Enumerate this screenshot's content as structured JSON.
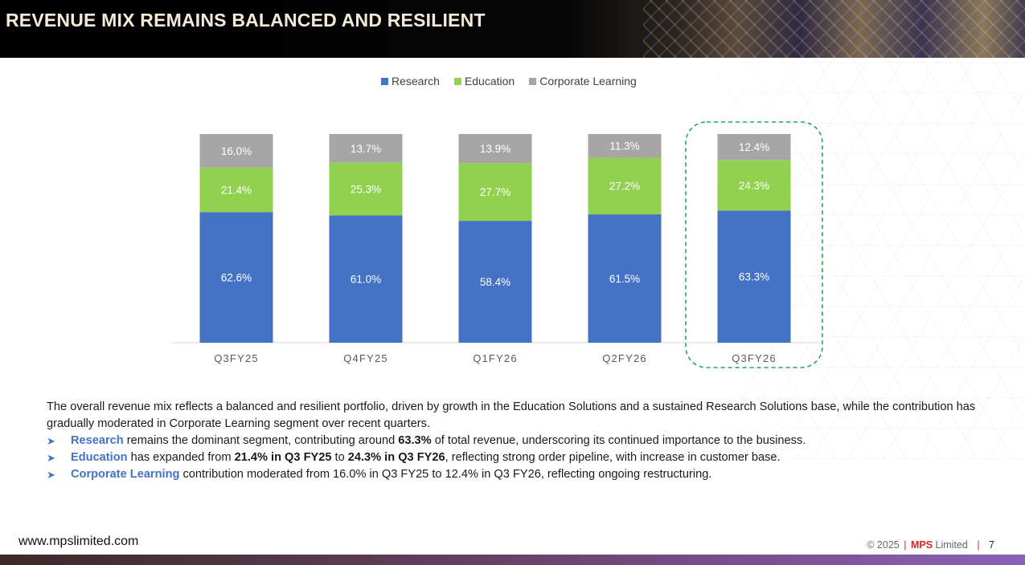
{
  "header": {
    "title": "REVENUE MIX REMAINS BALANCED AND RESILIENT"
  },
  "colors": {
    "research": "#4472c4",
    "education": "#92d050",
    "corporate": "#a6a6a6",
    "highlight": "#22aa55",
    "accent_red": "#d8241f"
  },
  "chart_data": {
    "type": "bar",
    "stacked": true,
    "categories": [
      "Q3FY25",
      "Q4FY25",
      "Q1FY26",
      "Q2FY26",
      "Q3FY26"
    ],
    "series": [
      {
        "name": "Research",
        "values": [
          62.6,
          61.0,
          58.4,
          61.5,
          63.3
        ],
        "labels": [
          "62.6%",
          "61.0%",
          "58.4%",
          "61.5%",
          "63.3%"
        ]
      },
      {
        "name": "Education",
        "values": [
          21.4,
          25.3,
          27.7,
          27.2,
          24.3
        ],
        "labels": [
          "21.4%",
          "25.3%",
          "27.7%",
          "27.2%",
          "24.3%"
        ]
      },
      {
        "name": "Corporate Learning",
        "values": [
          16.0,
          13.7,
          13.9,
          11.3,
          12.4
        ],
        "labels": [
          "16.0%",
          "13.7%",
          "13.9%",
          "11.3%",
          "12.4%"
        ]
      }
    ],
    "highlighted_category": "Q3FY26",
    "legend_position": "top",
    "title": "",
    "xlabel": "",
    "ylabel": "",
    "ylim": [
      0,
      100
    ],
    "grid": false
  },
  "legend": {
    "items": [
      {
        "label": "Research",
        "color": "#4472c4"
      },
      {
        "label": "Education",
        "color": "#92d050"
      },
      {
        "label": "Corporate Learning",
        "color": "#a6a6a6"
      }
    ]
  },
  "summary": {
    "intro": "The overall revenue mix reflects a balanced and resilient portfolio, driven by growth in the Education Solutions and a sustained Research Solutions base, while the contribution has gradually moderated in Corporate Learning segment over recent quarters.",
    "bullets": [
      {
        "segment": "Research",
        "t1": " remains the dominant segment, contributing around ",
        "b1": "63.3%",
        "t2": " of total revenue, underscoring its continued importance to the business.",
        "b2": "",
        "t3": ""
      },
      {
        "segment": "Education",
        "t1": " has expanded from ",
        "b1": "21.4% in Q3 FY25",
        "t2": " to ",
        "b2": "24.3% in Q3 FY26",
        "t3": ", reflecting strong order pipeline, with increase in customer base."
      },
      {
        "segment": "Corporate Learning",
        "t1": " contribution moderated from 16.0% in Q3 FY25 to 12.4% in Q3 FY26, reflecting ongoing restructuring.",
        "b1": "",
        "t2": "",
        "b2": "",
        "t3": ""
      }
    ]
  },
  "footer": {
    "website": "www.mpslimited.com",
    "copyright": "© 2025",
    "sep": "|",
    "brand": "MPS",
    "brand_suffix": "Limited",
    "page_number": "7"
  }
}
